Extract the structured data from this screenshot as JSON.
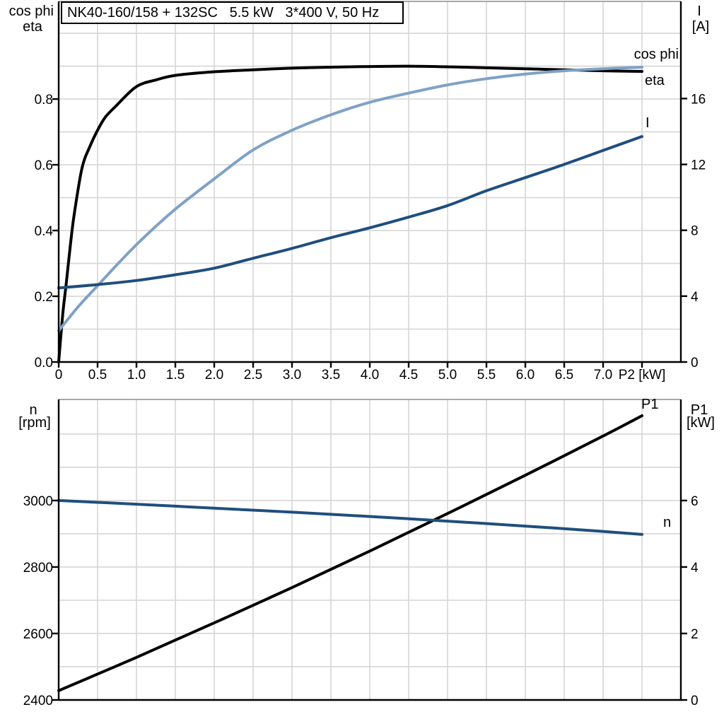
{
  "title": "NK40-160/158 + 132SC   5.5 kW   3*400 V, 50 Hz",
  "colors": {
    "eta": "#000000",
    "cos_phi": "#7fa1c6",
    "current": "#1f4e7e",
    "p1": "#000000",
    "speed": "#1f4e7e",
    "grid": "#d6d6d6",
    "axis": "#000000",
    "frame_top": "#8c8c8c",
    "background": "#ffffff"
  },
  "chart_data": [
    {
      "id": "motor-performance-top",
      "type": "line",
      "title": "NK40-160/158 + 132SC   5.5 kW   3*400 V, 50 Hz",
      "xlabel": "P2 [kW]",
      "x_range": [
        0,
        8
      ],
      "grid": {
        "x_step": 0.5,
        "y_step_left": 0.1,
        "visible": true
      },
      "left_axis": {
        "title_line1": "cos phi",
        "title_line2": "eta",
        "range": [
          0,
          1.097
        ],
        "ticks": [
          {
            "v": 0.0,
            "t": "0.0"
          },
          {
            "v": 0.2,
            "t": "0.2"
          },
          {
            "v": 0.4,
            "t": "0.4"
          },
          {
            "v": 0.6,
            "t": "0.6"
          },
          {
            "v": 0.8,
            "t": "0.8"
          }
        ]
      },
      "right_axis": {
        "title_line1": "I",
        "title_line2": "[A]",
        "range": [
          0,
          21.9
        ],
        "ticks": [
          {
            "v": 0,
            "t": "0"
          },
          {
            "v": 4,
            "t": "4"
          },
          {
            "v": 8,
            "t": "8"
          },
          {
            "v": 12,
            "t": "12"
          },
          {
            "v": 16,
            "t": "16"
          }
        ]
      },
      "x_ticks": [
        {
          "v": 0.0,
          "t": "0"
        },
        {
          "v": 0.5,
          "t": "0.5"
        },
        {
          "v": 1.0,
          "t": "1.0"
        },
        {
          "v": 1.5,
          "t": "1.5"
        },
        {
          "v": 2.0,
          "t": "2.0"
        },
        {
          "v": 2.5,
          "t": "2.5"
        },
        {
          "v": 3.0,
          "t": "3.0"
        },
        {
          "v": 3.5,
          "t": "3.5"
        },
        {
          "v": 4.0,
          "t": "4.0"
        },
        {
          "v": 4.5,
          "t": "4.5"
        },
        {
          "v": 5.0,
          "t": "5.0"
        },
        {
          "v": 5.5,
          "t": "5.5"
        },
        {
          "v": 6.0,
          "t": "6.0"
        },
        {
          "v": 6.5,
          "t": "6.5"
        },
        {
          "v": 7.0,
          "t": "7.0"
        },
        {
          "v": 7.5,
          "t": "P2 [kW]"
        }
      ],
      "series": [
        {
          "name": "eta",
          "label": "eta",
          "axis": "left",
          "color_key": "eta",
          "points": [
            [
              0,
              0
            ],
            [
              0.05,
              0.14
            ],
            [
              0.1,
              0.245
            ],
            [
              0.15,
              0.355
            ],
            [
              0.2,
              0.45
            ],
            [
              0.3,
              0.59
            ],
            [
              0.4,
              0.655
            ],
            [
              0.5,
              0.705
            ],
            [
              0.6,
              0.745
            ],
            [
              0.75,
              0.782
            ],
            [
              1.0,
              0.838
            ],
            [
              1.25,
              0.858
            ],
            [
              1.5,
              0.872
            ],
            [
              2.0,
              0.883
            ],
            [
              2.5,
              0.889
            ],
            [
              3.0,
              0.894
            ],
            [
              3.5,
              0.897
            ],
            [
              4.0,
              0.899
            ],
            [
              4.5,
              0.9
            ],
            [
              5.0,
              0.898
            ],
            [
              5.5,
              0.895
            ],
            [
              6.0,
              0.892
            ],
            [
              6.5,
              0.889
            ],
            [
              7.0,
              0.886
            ],
            [
              7.5,
              0.884
            ]
          ]
        },
        {
          "name": "cos phi",
          "label": "cos phi",
          "axis": "left",
          "color_key": "cos_phi",
          "points": [
            [
              0,
              0.095
            ],
            [
              0.25,
              0.168
            ],
            [
              0.5,
              0.232
            ],
            [
              0.75,
              0.296
            ],
            [
              1.0,
              0.357
            ],
            [
              1.25,
              0.413
            ],
            [
              1.5,
              0.465
            ],
            [
              1.75,
              0.512
            ],
            [
              2.0,
              0.557
            ],
            [
              2.5,
              0.645
            ],
            [
              3.0,
              0.705
            ],
            [
              3.5,
              0.752
            ],
            [
              4.0,
              0.79
            ],
            [
              4.5,
              0.818
            ],
            [
              5.0,
              0.843
            ],
            [
              5.5,
              0.862
            ],
            [
              6.0,
              0.876
            ],
            [
              6.5,
              0.886
            ],
            [
              7.0,
              0.892
            ],
            [
              7.5,
              0.897
            ]
          ]
        },
        {
          "name": "I",
          "label": "I",
          "axis": "right",
          "color_key": "current",
          "points": [
            [
              0,
              4.5
            ],
            [
              0.5,
              4.7
            ],
            [
              1.0,
              4.95
            ],
            [
              1.5,
              5.3
            ],
            [
              2.0,
              5.7
            ],
            [
              2.5,
              6.3
            ],
            [
              3.0,
              6.9
            ],
            [
              3.5,
              7.55
            ],
            [
              4.0,
              8.15
            ],
            [
              4.5,
              8.8
            ],
            [
              5.0,
              9.5
            ],
            [
              5.5,
              10.4
            ],
            [
              6.0,
              11.2
            ],
            [
              6.5,
              12.0
            ],
            [
              7.0,
              12.85
            ],
            [
              7.5,
              13.7
            ]
          ]
        }
      ]
    },
    {
      "id": "motor-performance-bottom",
      "type": "line",
      "xlabel": "",
      "x_range": [
        0,
        8
      ],
      "grid": {
        "x_step": 0.5,
        "y_step_right": 1,
        "visible": true
      },
      "left_axis": {
        "title_line1": "n",
        "title_line2": "[rpm]",
        "range": [
          2400,
          3304
        ],
        "ticks": [
          {
            "v": 2400,
            "t": "2400"
          },
          {
            "v": 2600,
            "t": "2600"
          },
          {
            "v": 2800,
            "t": "2800"
          },
          {
            "v": 3000,
            "t": "3000"
          }
        ]
      },
      "right_axis": {
        "title_line1": "P1",
        "title_line2": "[kW]",
        "range": [
          0,
          9.04
        ],
        "ticks": [
          {
            "v": 0,
            "t": "0"
          },
          {
            "v": 2,
            "t": "2"
          },
          {
            "v": 4,
            "t": "4"
          },
          {
            "v": 6,
            "t": "6"
          }
        ]
      },
      "x_ticks": [],
      "series": [
        {
          "name": "P1",
          "label": "P1",
          "axis": "right",
          "color_key": "p1",
          "points": [
            [
              0,
              0.28
            ],
            [
              1,
              1.28
            ],
            [
              2,
              2.32
            ],
            [
              3,
              3.38
            ],
            [
              4,
              4.48
            ],
            [
              5,
              5.61
            ],
            [
              6,
              6.76
            ],
            [
              7,
              7.94
            ],
            [
              7.5,
              8.55
            ]
          ]
        },
        {
          "name": "n",
          "label": "n",
          "axis": "left",
          "color_key": "speed",
          "points": [
            [
              0,
              3000
            ],
            [
              1,
              2989
            ],
            [
              2,
              2977
            ],
            [
              3,
              2965
            ],
            [
              4,
              2952
            ],
            [
              5,
              2938
            ],
            [
              6,
              2923
            ],
            [
              7,
              2907
            ],
            [
              7.5,
              2898
            ]
          ]
        }
      ]
    }
  ]
}
